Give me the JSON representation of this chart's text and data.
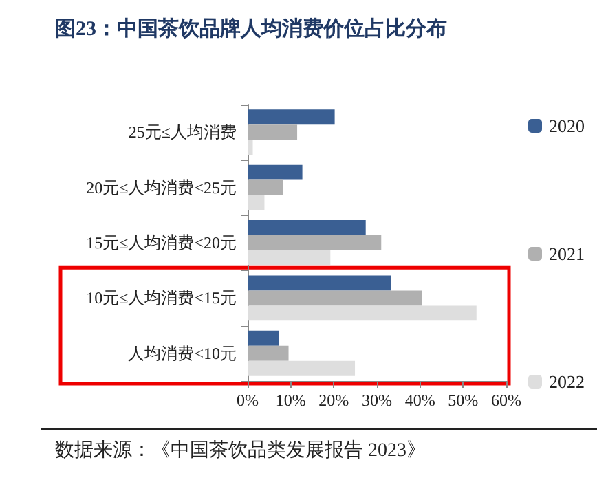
{
  "chart_data": {
    "type": "bar",
    "orientation": "horizontal",
    "title": "图23：中国茶饮品牌人均消费价位占比分布",
    "categories": [
      "25元≤人均消费",
      "20元≤人均消费<25元",
      "15元≤人均消费<20元",
      "10元≤人均消费<15元",
      "人均消费<10元"
    ],
    "series": [
      {
        "name": "2020",
        "color": "#3a5f93",
        "values": [
          20.2,
          12.7,
          27.4,
          33.2,
          7.2
        ]
      },
      {
        "name": "2021",
        "color": "#b0b0b0",
        "values": [
          11.5,
          8.2,
          31,
          40.4,
          9.5
        ]
      },
      {
        "name": "2022",
        "color": "#dedede",
        "values": [
          1.2,
          3.9,
          19.2,
          53.1,
          24.9
        ]
      }
    ],
    "xlim": [
      0,
      60
    ],
    "xticks": [
      {
        "value": 0,
        "label": "0%"
      },
      {
        "value": 10,
        "label": "10%"
      },
      {
        "value": 20,
        "label": "20%"
      },
      {
        "value": 30,
        "label": "30%"
      },
      {
        "value": 40,
        "label": "40%"
      },
      {
        "value": 50,
        "label": "50%"
      },
      {
        "value": 60,
        "label": "60%"
      }
    ],
    "grid": false,
    "legend": "right",
    "annotations": [
      "数据来源：《中国茶饮品类发展报告 2023》"
    ]
  }
}
